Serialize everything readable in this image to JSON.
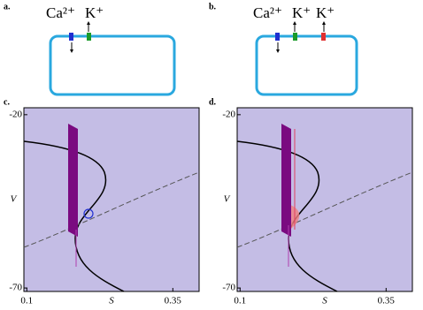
{
  "panels": [
    {
      "label": "a.",
      "ions": [
        "Ca²⁺",
        "K⁺"
      ]
    },
    {
      "label": "b.",
      "ions": [
        "Ca²⁺",
        "K⁺",
        "K⁺"
      ]
    },
    {
      "label": "c.",
      "xlabel": "S",
      "ylabel": "V",
      "xlim": [
        0.095,
        0.395
      ],
      "ylim": [
        -71,
        -18
      ],
      "xticks": [
        0.1,
        0.35
      ],
      "yticks": [
        -20,
        -70
      ]
    },
    {
      "label": "d.",
      "xlabel": "S",
      "ylabel": "V",
      "xlim": [
        0.095,
        0.395
      ],
      "ylim": [
        -71,
        -18
      ],
      "xticks": [
        0.1,
        0.35
      ],
      "yticks": [
        -20,
        -70
      ]
    }
  ]
}
